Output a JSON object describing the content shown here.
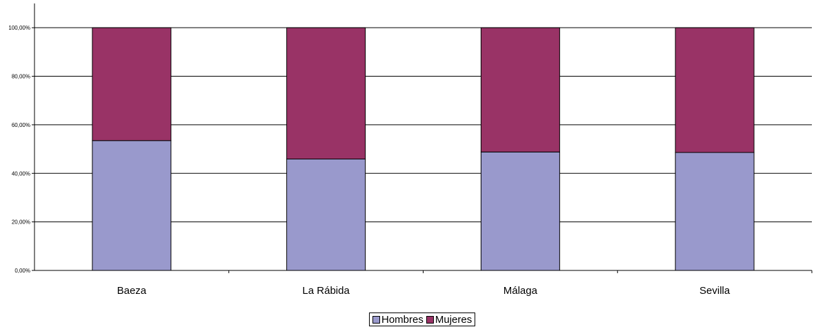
{
  "chart_data": {
    "type": "bar",
    "stacked": true,
    "categories": [
      "Baeza",
      "La Rábida",
      "Málaga",
      "Sevilla"
    ],
    "series": [
      {
        "name": "Hombres",
        "values": [
          53.5,
          45.9,
          48.8,
          48.6
        ],
        "color": "#9999cc"
      },
      {
        "name": "Mujeres",
        "values": [
          46.5,
          54.1,
          51.2,
          51.4
        ],
        "color": "#993366"
      }
    ],
    "yticks": [
      "0,00%",
      "20,00%",
      "40,00%",
      "60,00%",
      "80,00%",
      "100,00%"
    ],
    "ylim": [
      0,
      110
    ],
    "grid": true,
    "legend_position": "bottom"
  }
}
